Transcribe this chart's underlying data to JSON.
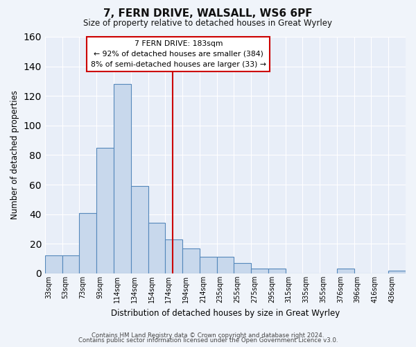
{
  "title": "7, FERN DRIVE, WALSALL, WS6 6PF",
  "subtitle": "Size of property relative to detached houses in Great Wyrley",
  "xlabel": "Distribution of detached houses by size in Great Wyrley",
  "ylabel": "Number of detached properties",
  "bar_color": "#c8d8ec",
  "bar_edge_color": "#5588bb",
  "background_color": "#e8eef8",
  "grid_color": "#ffffff",
  "fig_background": "#f0f4fa",
  "vline_x": 7,
  "vline_color": "#cc0000",
  "annotation_text": "7 FERN DRIVE: 183sqm\n← 92% of detached houses are smaller (384)\n8% of semi-detached houses are larger (33) →",
  "annotation_box_color": "#ffffff",
  "annotation_box_edge": "#cc0000",
  "categories": [
    "33sqm",
    "53sqm",
    "73sqm",
    "93sqm",
    "114sqm",
    "134sqm",
    "154sqm",
    "174sqm",
    "194sqm",
    "214sqm",
    "235sqm",
    "255sqm",
    "275sqm",
    "295sqm",
    "315sqm",
    "335sqm",
    "355sqm",
    "376sqm",
    "396sqm",
    "416sqm",
    "436sqm"
  ],
  "values": [
    12,
    12,
    41,
    85,
    128,
    59,
    34,
    23,
    17,
    11,
    11,
    7,
    3,
    3,
    0,
    0,
    0,
    3,
    0,
    0,
    2
  ],
  "ylim": [
    0,
    160
  ],
  "yticks": [
    0,
    20,
    40,
    60,
    80,
    100,
    120,
    140,
    160
  ],
  "footnote1": "Contains HM Land Registry data © Crown copyright and database right 2024.",
  "footnote2": "Contains public sector information licensed under the Open Government Licence v3.0."
}
